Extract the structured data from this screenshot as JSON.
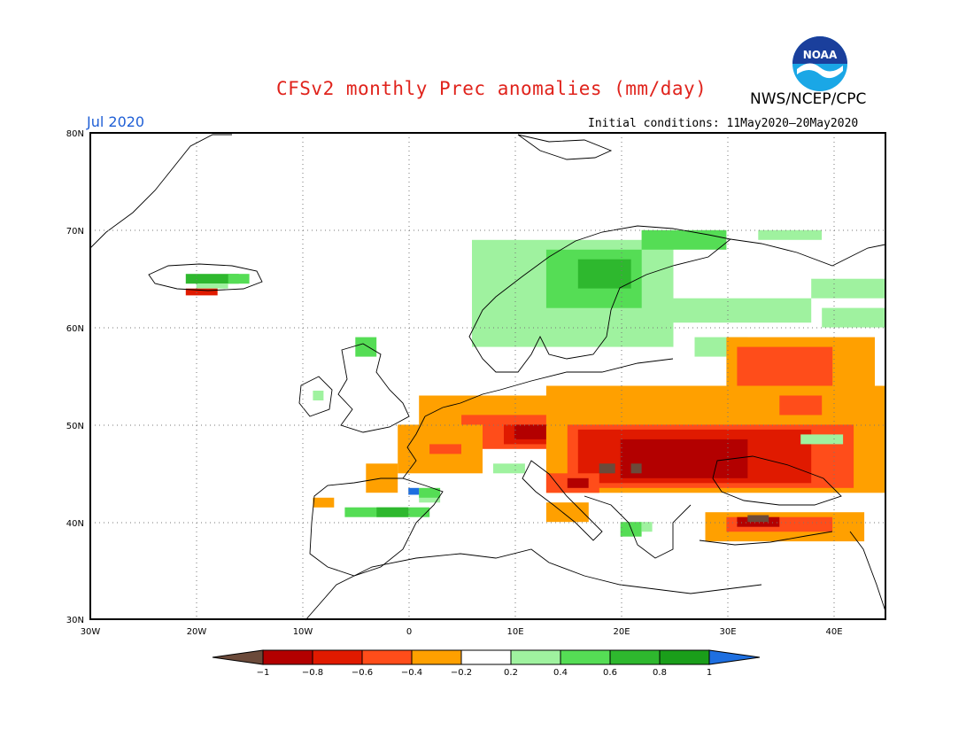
{
  "header": {
    "title": "CFSv2 monthly Prec anomalies (mm/day)",
    "agency": "NWS/NCEP/CPC",
    "logo_text": "NOAA",
    "month": "Jul 2020",
    "initial_conditions": "Initial conditions: 11May2020–20May2020"
  },
  "axes": {
    "lat_labels": [
      "80N",
      "70N",
      "60N",
      "50N",
      "40N",
      "30N"
    ],
    "lon_labels": [
      "30W",
      "20W",
      "10W",
      "0",
      "10E",
      "20E",
      "30E",
      "40E"
    ]
  },
  "colorbar": {
    "labels": [
      "−1",
      "−0.8",
      "−0.6",
      "−0.4",
      "−0.2",
      "0.2",
      "0.4",
      "0.6",
      "0.8",
      "1"
    ],
    "colors": [
      "#6b4a3a",
      "#b30000",
      "#e01a00",
      "#ff4d1a",
      "#ffa000",
      "#ffffff",
      "#9ff29f",
      "#55dd55",
      "#2eb82e",
      "#1a9e1a",
      "#1e6fe0"
    ]
  },
  "anomaly_colors": {
    "strong_dry": "#6b4a3a",
    "very_dry": "#b30000",
    "dry": "#e01a00",
    "moderate_dry": "#ff4d1a",
    "slightly_dry": "#ffa000",
    "slightly_wet": "#9ff29f",
    "moderate_wet": "#55dd55",
    "wet": "#2eb82e",
    "very_wet": "#1a9e1a",
    "strong_wet": "#1e6fe0"
  }
}
